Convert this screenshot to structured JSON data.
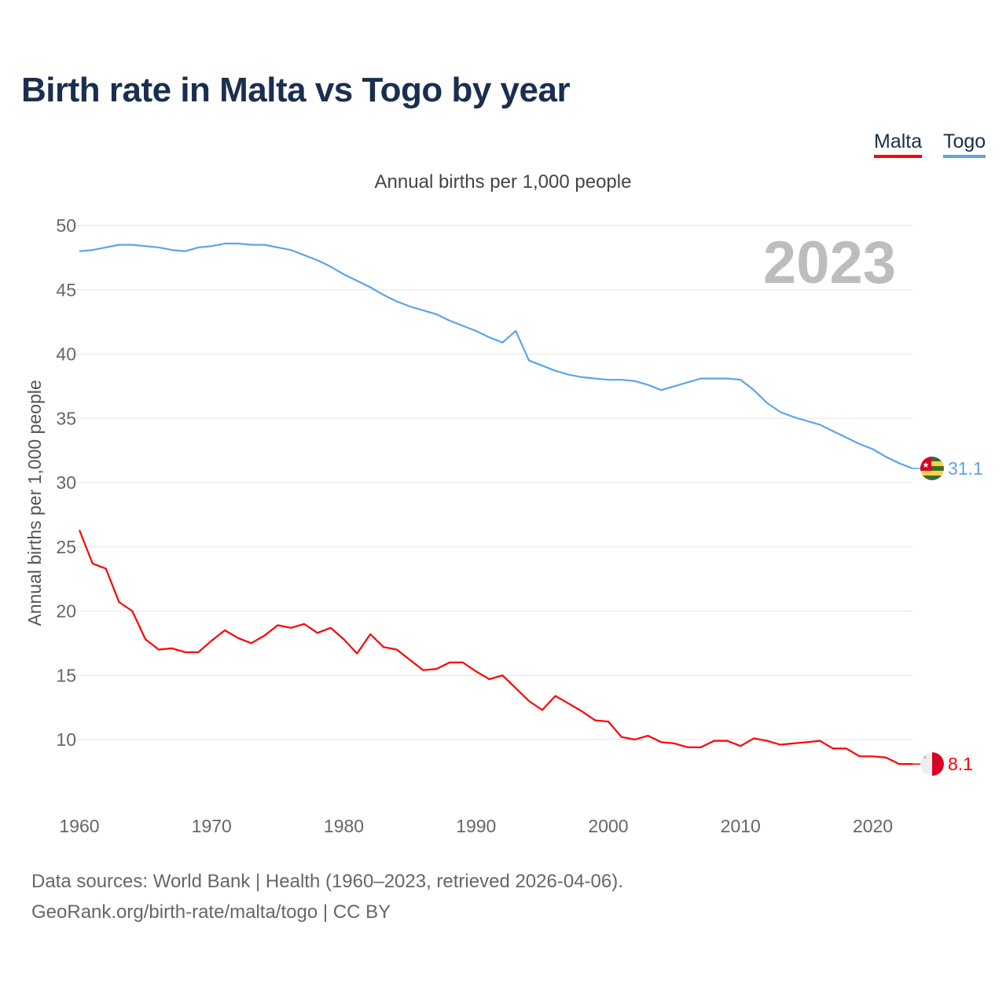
{
  "title": "Birth rate in Malta vs Togo by year",
  "legend": [
    "Malta",
    "Togo"
  ],
  "footer": {
    "line1": "Data sources: World Bank | Health (1960–2023, retrieved 2026-04-06).",
    "line2": "GeoRank.org/birth-rate/malta/togo | CC BY"
  },
  "chart_data": {
    "type": "line",
    "title": "Birth rate in Malta vs Togo by year",
    "subtitle": "Annual births per 1,000 people",
    "xlabel": "",
    "ylabel": "Annual births per 1,000 people",
    "year_label": "2023",
    "xlim": [
      1960,
      2023
    ],
    "ylim": [
      5,
      51
    ],
    "x_ticks": [
      1960,
      1970,
      1980,
      1990,
      2000,
      2010,
      2020
    ],
    "y_ticks": [
      10,
      15,
      20,
      25,
      30,
      35,
      40,
      45,
      50
    ],
    "grid": true,
    "legend_position": "top-right",
    "x": [
      1960,
      1961,
      1962,
      1963,
      1964,
      1965,
      1966,
      1967,
      1968,
      1969,
      1970,
      1971,
      1972,
      1973,
      1974,
      1975,
      1976,
      1977,
      1978,
      1979,
      1980,
      1981,
      1982,
      1983,
      1984,
      1985,
      1986,
      1987,
      1988,
      1989,
      1990,
      1991,
      1992,
      1993,
      1994,
      1995,
      1996,
      1997,
      1998,
      1999,
      2000,
      2001,
      2002,
      2003,
      2004,
      2005,
      2006,
      2007,
      2008,
      2009,
      2010,
      2011,
      2012,
      2013,
      2014,
      2015,
      2016,
      2017,
      2018,
      2019,
      2020,
      2021,
      2022,
      2023
    ],
    "series": [
      {
        "name": "Malta",
        "color": "#ff0000",
        "end_label": "8.1",
        "flag": "malta-flag",
        "values": [
          26.3,
          23.7,
          23.3,
          20.7,
          20.0,
          17.8,
          17.0,
          17.1,
          16.8,
          16.8,
          17.7,
          18.5,
          17.9,
          17.5,
          18.1,
          18.9,
          18.7,
          19.0,
          18.3,
          18.7,
          17.8,
          16.7,
          18.2,
          17.2,
          17.0,
          16.2,
          15.4,
          15.5,
          16.0,
          16.0,
          15.3,
          14.7,
          15.0,
          14.0,
          13.0,
          12.3,
          13.4,
          12.8,
          12.2,
          11.5,
          11.4,
          10.2,
          10.0,
          10.3,
          9.8,
          9.7,
          9.4,
          9.4,
          9.9,
          9.9,
          9.5,
          10.1,
          9.9,
          9.6,
          9.7,
          9.8,
          9.9,
          9.3,
          9.3,
          8.7,
          8.7,
          8.6,
          8.1,
          8.1
        ]
      },
      {
        "name": "Togo",
        "color": "#5ba4ec",
        "end_label": "31.1",
        "flag": "togo-flag",
        "values": [
          48.0,
          48.1,
          48.3,
          48.5,
          48.5,
          48.4,
          48.3,
          48.1,
          48.0,
          48.3,
          48.4,
          48.6,
          48.6,
          48.5,
          48.5,
          48.3,
          48.1,
          47.7,
          47.3,
          46.8,
          46.2,
          45.7,
          45.2,
          44.6,
          44.1,
          43.7,
          43.4,
          43.1,
          42.6,
          42.2,
          41.8,
          41.3,
          40.9,
          41.8,
          39.5,
          39.1,
          38.7,
          38.4,
          38.2,
          38.1,
          38.0,
          38.0,
          37.9,
          37.6,
          37.2,
          37.5,
          37.8,
          38.1,
          38.1,
          38.1,
          38.0,
          37.2,
          36.2,
          35.5,
          35.1,
          34.8,
          34.5,
          34.0,
          33.5,
          33.0,
          32.6,
          32.0,
          31.5,
          31.1
        ]
      }
    ]
  }
}
